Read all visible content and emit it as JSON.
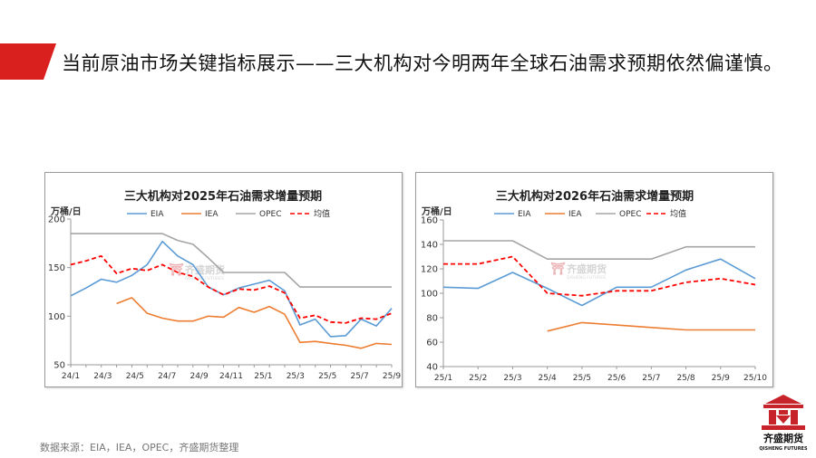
{
  "page": {
    "title": "当前原油市场关键指标展示——三大机构对今明两年全球石油需求预期依然偏谨慎。",
    "source": "数据来源：EIA，IEA，OPEC，齐盛期货整理",
    "brand_name": "齐盛期货",
    "brand_sub": "QISHENG FUTURES",
    "watermark_name": "齐盛期货",
    "watermark_sub": "QISHENG FUTURES",
    "colors": {
      "banner": "#d9201f",
      "eia": "#5b9bd5",
      "iea": "#ed7d31",
      "opec": "#a5a5a5",
      "avg": "#ff0000",
      "logo": "#c7232a"
    }
  },
  "chart_data": [
    {
      "type": "line",
      "title": "三大机构对2025年石油需求增量预期",
      "ylabel": "万桶/日",
      "ylim": [
        50,
        200
      ],
      "yticks": [
        50,
        100,
        150,
        200
      ],
      "xlabels": [
        "24/1",
        "24/3",
        "24/5",
        "24/7",
        "24/9",
        "24/11",
        "25/1",
        "25/3",
        "25/5",
        "25/7",
        "25/9"
      ],
      "x_count": 22,
      "legend": [
        "EIA",
        "IEA",
        "OPEC",
        "均值"
      ],
      "series": [
        {
          "name": "EIA",
          "style": "solid",
          "color": "#5b9bd5",
          "values": [
            121,
            129,
            138,
            135,
            142,
            153,
            177,
            162,
            153,
            130,
            122,
            129,
            133,
            137,
            126,
            91,
            97,
            79,
            80,
            97,
            90,
            108
          ]
        },
        {
          "name": "IEA",
          "style": "solid",
          "color": "#ed7d31",
          "values": [
            null,
            null,
            null,
            113,
            119,
            103,
            98,
            95,
            95,
            100,
            99,
            109,
            104,
            110,
            102,
            73,
            74,
            72,
            70,
            67,
            72,
            71
          ]
        },
        {
          "name": "OPEC",
          "style": "solid",
          "color": "#a5a5a5",
          "values": [
            185,
            185,
            185,
            185,
            185,
            185,
            185,
            178,
            174,
            160,
            145,
            145,
            145,
            145,
            145,
            130,
            130,
            130,
            130,
            130,
            130,
            130
          ]
        },
        {
          "name": "均值",
          "style": "dashed",
          "color": "#ff0000",
          "values": [
            153,
            157,
            162,
            144,
            149,
            147,
            153,
            145,
            141,
            130,
            122,
            128,
            127,
            131,
            124,
            98,
            101,
            94,
            93,
            98,
            97,
            103
          ]
        }
      ]
    },
    {
      "type": "line",
      "title": "三大机构对2026年石油需求增量预期",
      "ylabel": "万桶/日",
      "ylim": [
        40,
        160
      ],
      "yticks": [
        40,
        60,
        80,
        100,
        120,
        140,
        160
      ],
      "xlabels": [
        "25/1",
        "25/2",
        "25/3",
        "25/4",
        "25/5",
        "25/6",
        "25/7",
        "25/8",
        "25/9",
        "25/10"
      ],
      "x_count": 10,
      "legend": [
        "EIA",
        "IEA",
        "OPEC",
        "均值"
      ],
      "series": [
        {
          "name": "EIA",
          "style": "solid",
          "color": "#5b9bd5",
          "values": [
            105,
            104,
            117,
            104,
            90,
            105,
            105,
            119,
            128,
            112
          ]
        },
        {
          "name": "IEA",
          "style": "solid",
          "color": "#ed7d31",
          "values": [
            null,
            null,
            null,
            69,
            76,
            74,
            72,
            70,
            70,
            70
          ]
        },
        {
          "name": "OPEC",
          "style": "solid",
          "color": "#a5a5a5",
          "values": [
            143,
            143,
            143,
            128,
            128,
            128,
            128,
            138,
            138,
            138
          ]
        },
        {
          "name": "均值",
          "style": "dashed",
          "color": "#ff0000",
          "values": [
            124,
            124,
            130,
            100,
            98,
            102,
            102,
            109,
            112,
            107
          ]
        }
      ]
    }
  ]
}
